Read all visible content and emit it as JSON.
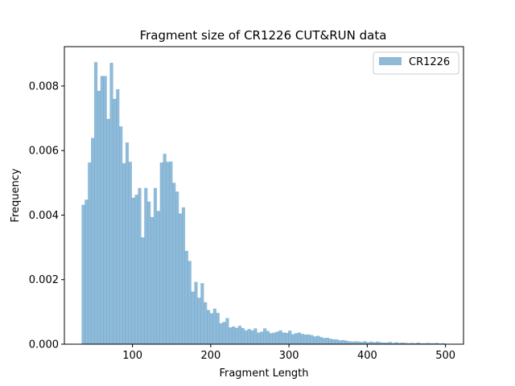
{
  "chart_data": {
    "type": "bar",
    "title": "Fragment size of CR1226 CUT&RUN data",
    "xlabel": "Fragment Length",
    "ylabel": "Frequency",
    "xlim": [
      13,
      523
    ],
    "ylim": [
      0,
      0.00922
    ],
    "xticks": [
      100,
      200,
      300,
      400,
      500
    ],
    "xtick_labels": [
      "100",
      "200",
      "300",
      "400",
      "500"
    ],
    "yticks": [
      0,
      0.002,
      0.004,
      0.006,
      0.008
    ],
    "ytick_labels": [
      "0.000",
      "0.002",
      "0.004",
      "0.006",
      "0.008"
    ],
    "grid": false,
    "legend_position": "top-right",
    "series": [
      {
        "name": "CR1226",
        "color": "#1f77b4",
        "alpha": 0.5,
        "bin_edges": [
          35,
          39,
          43,
          47,
          51,
          55,
          59,
          63,
          67,
          71,
          75,
          79,
          83,
          87,
          91,
          95,
          99,
          103,
          107,
          111,
          115,
          119,
          123,
          127,
          131,
          135,
          139,
          143,
          147,
          151,
          155,
          159,
          163,
          167,
          171,
          175,
          179,
          183,
          187,
          191,
          195,
          199,
          203,
          207,
          211,
          215,
          219,
          223,
          227,
          231,
          235,
          239,
          243,
          247,
          251,
          255,
          259,
          263,
          267,
          271,
          275,
          279,
          283,
          287,
          291,
          295,
          299,
          303,
          307,
          311,
          315,
          319,
          323,
          327,
          331,
          335,
          339,
          343,
          347,
          351,
          355,
          359,
          363,
          367,
          371,
          375,
          379,
          383,
          387,
          391,
          395,
          399,
          403,
          407,
          411,
          415,
          419,
          423,
          427,
          431,
          435,
          439,
          443,
          447,
          451,
          455,
          459,
          463,
          467,
          471,
          475,
          479,
          483,
          487,
          491,
          495,
          499,
          503
        ],
        "frequencies": [
          0.00432,
          0.00448,
          0.00563,
          0.00639,
          0.00874,
          0.00785,
          0.00831,
          0.00831,
          0.00698,
          0.00872,
          0.0076,
          0.0079,
          0.00675,
          0.00561,
          0.00625,
          0.00565,
          0.00454,
          0.00463,
          0.00484,
          0.00331,
          0.00484,
          0.00442,
          0.00394,
          0.00484,
          0.00413,
          0.00563,
          0.0059,
          0.00565,
          0.00566,
          0.005,
          0.00473,
          0.00405,
          0.00424,
          0.00289,
          0.00258,
          0.00163,
          0.00193,
          0.00144,
          0.00189,
          0.0013,
          0.00106,
          0.00096,
          0.0011,
          0.00097,
          0.00065,
          0.00069,
          0.00081,
          0.00052,
          0.00055,
          0.00051,
          0.00057,
          0.0005,
          0.00043,
          0.00047,
          0.00043,
          0.00049,
          0.00036,
          0.00039,
          0.00049,
          0.00041,
          0.00034,
          0.00036,
          0.00039,
          0.00043,
          0.00036,
          0.00035,
          0.00042,
          0.00031,
          0.00034,
          0.00036,
          0.00032,
          0.0003,
          0.0003,
          0.00028,
          0.00024,
          0.00026,
          0.00022,
          0.00019,
          0.0002,
          0.00017,
          0.00015,
          0.00015,
          0.00012,
          0.00013,
          0.00011,
          9e-05,
          8e-05,
          9e-05,
          8e-05,
          7e-05,
          9e-05,
          6e-05,
          8e-05,
          6e-05,
          8e-05,
          6e-05,
          5e-05,
          5e-05,
          7e-05,
          4e-05,
          6e-05,
          4e-05,
          5e-05,
          4e-05,
          3e-05,
          4e-05,
          3e-05,
          5e-05,
          3e-05,
          3e-05,
          4e-05,
          3e-05,
          3e-05,
          4e-05,
          2e-05,
          3e-05,
          1e-05
        ]
      }
    ]
  }
}
